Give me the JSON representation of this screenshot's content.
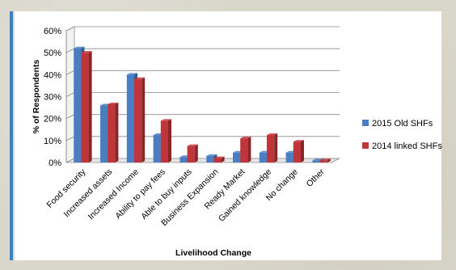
{
  "chart_data": {
    "type": "bar",
    "title": "",
    "xlabel": "Livelihood Change",
    "ylabel": "% of Respondents",
    "ylim": [
      0,
      60
    ],
    "yticks": [
      "0%",
      "10%",
      "20%",
      "30%",
      "40%",
      "50%",
      "60%"
    ],
    "grid": true,
    "legend_position": "right",
    "categories": [
      "Food security",
      "Increased assets",
      "Increased Income",
      "Ability to pay fees",
      "Able to buy inputs",
      "Business Expansion",
      "Ready Market",
      "Gained knowledge",
      "No change",
      "Other"
    ],
    "series": [
      {
        "name": "2015 Old SHFs",
        "color": "#4a7ec2",
        "values": [
          52,
          26,
          40,
          12.5,
          2.5,
          3,
          4.5,
          4.5,
          4.5,
          1
        ]
      },
      {
        "name": "2014 linked SHFs",
        "color": "#c0353a",
        "values": [
          50,
          26.5,
          38,
          19,
          7.5,
          2,
          11,
          12.5,
          9.5,
          1
        ]
      }
    ]
  }
}
